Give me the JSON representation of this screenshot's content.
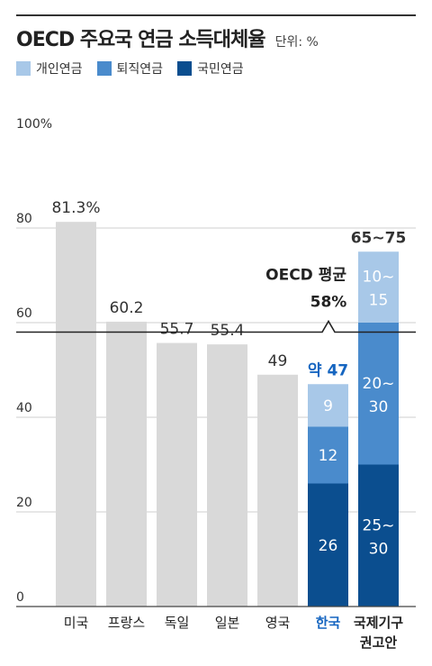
{
  "title": "OECD 주요국 연금 소득대체율",
  "unit": "단위: %",
  "legend": [
    {
      "label": "개인연금",
      "color": "#a8c8e8"
    },
    {
      "label": "퇴직연금",
      "color": "#4a8bcc"
    },
    {
      "label": "국민연금",
      "color": "#0b4e8f"
    }
  ],
  "chart_data": {
    "type": "bar",
    "ylim": [
      0,
      100
    ],
    "y_ticks": [
      "100%",
      "80",
      "60",
      "40",
      "20",
      "0"
    ],
    "grid": true,
    "categories": [
      {
        "label": "미국",
        "value": 81.3,
        "value_label": "81.3%",
        "highlight": false
      },
      {
        "label": "프랑스",
        "value": 60.2,
        "value_label": "60.2",
        "highlight": false
      },
      {
        "label": "독일",
        "value": 55.7,
        "value_label": "55.7",
        "highlight": false
      },
      {
        "label": "일본",
        "value": 55.4,
        "value_label": "55.4",
        "highlight": false
      },
      {
        "label": "영국",
        "value": 49,
        "value_label": "49",
        "highlight": false
      },
      {
        "label": "한국",
        "value": 47,
        "value_label": "약 47",
        "highlight": true,
        "segments": [
          {
            "series": "국민연금",
            "value": 26,
            "label": "26"
          },
          {
            "series": "퇴직연금",
            "value": 12,
            "label": "12"
          },
          {
            "series": "개인연금",
            "value": 9,
            "label": "9"
          }
        ]
      },
      {
        "label": "국제기구 권고안",
        "value": 75,
        "value_label": "65~75",
        "highlight": false,
        "segments": [
          {
            "series": "국민연금",
            "value": 30,
            "label": "25~30"
          },
          {
            "series": "퇴직연금",
            "value": 30,
            "label": "20~30"
          },
          {
            "series": "개인연금",
            "value": 15,
            "label": "10~15"
          }
        ]
      }
    ],
    "reference_line": {
      "label": "OECD 평균",
      "value": 58,
      "value_label": "58%"
    },
    "gray_bar_color": "#d9d9d9",
    "highlight_color": "#1565c0"
  }
}
